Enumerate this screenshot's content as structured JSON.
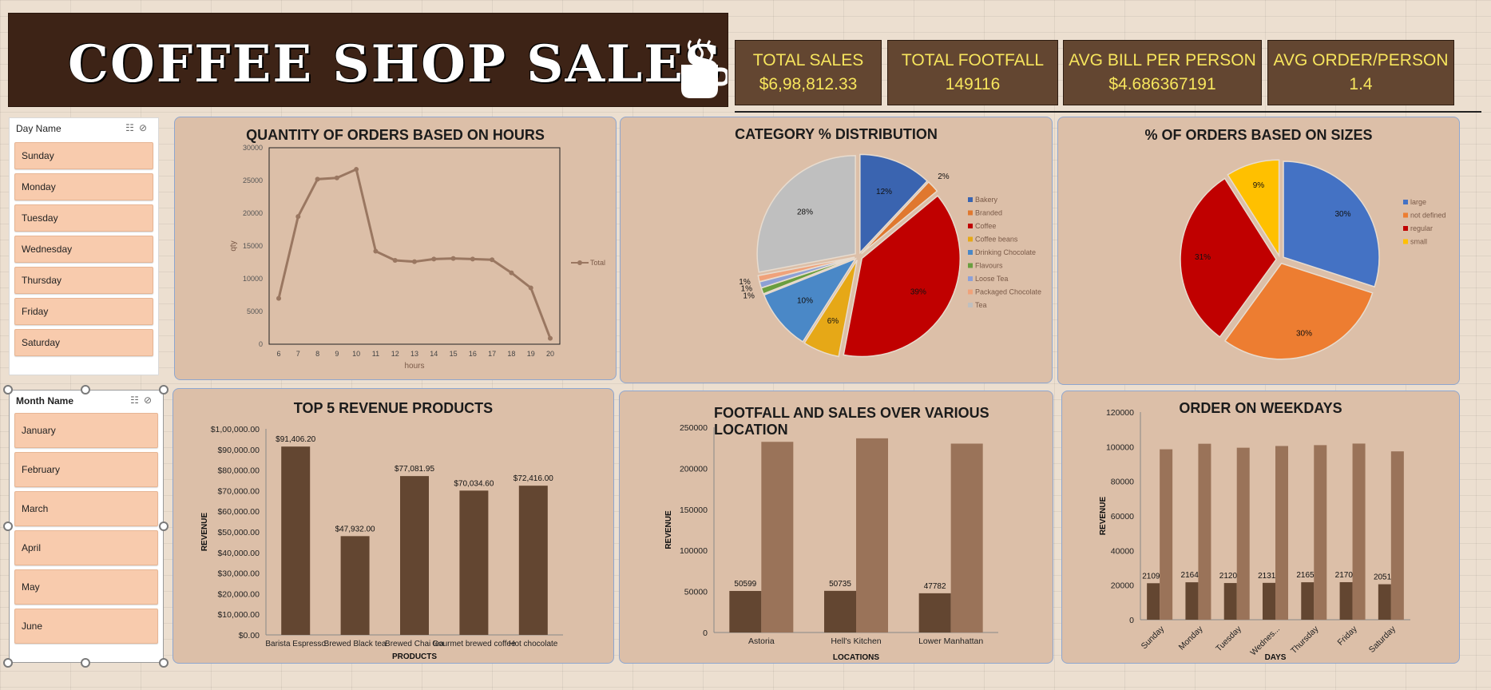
{
  "title": "COFFEE SHOP SALES",
  "kpis": [
    {
      "label": "TOTAL SALES",
      "value": "$6,98,812.33"
    },
    {
      "label": "TOTAL FOOTFALL",
      "value": "149116"
    },
    {
      "label": "AVG BILL PER PERSON",
      "value": "$4.686367191"
    },
    {
      "label": "AVG ORDER/PERSON",
      "value": "1.4"
    }
  ],
  "day_slicer": {
    "header": "Day Name",
    "items": [
      "Sunday",
      "Monday",
      "Tuesday",
      "Wednesday",
      "Thursday",
      "Friday",
      "Saturday"
    ]
  },
  "month_slicer": {
    "header": "Month Name",
    "items": [
      "January",
      "February",
      "March",
      "April",
      "May",
      "June"
    ]
  },
  "colors": {
    "banner": "#3d2316",
    "kpi": "#634631",
    "kpi_text": "#f7e55d",
    "panel": "#dcbfa8",
    "line": "#9a7761",
    "bar_dark": "#634631",
    "bar_light": "#9a7359"
  },
  "chart_data": [
    {
      "id": "hours",
      "type": "line",
      "title": "QUANTITY OF ORDERS BASED ON HOURS",
      "xlabel": "hours",
      "ylabel": "qty",
      "x": [
        6,
        7,
        8,
        9,
        10,
        11,
        12,
        13,
        14,
        15,
        16,
        17,
        18,
        19,
        20
      ],
      "series": [
        {
          "name": "Total",
          "values": [
            7000,
            19500,
            25200,
            25400,
            26700,
            14200,
            12800,
            12600,
            13000,
            13100,
            13000,
            12900,
            10900,
            8600,
            900
          ]
        }
      ],
      "yticks": [
        "0",
        "5000",
        "10000",
        "15000",
        "20000",
        "25000",
        "30000"
      ],
      "ylim": [
        0,
        30000
      ],
      "legend": "right"
    },
    {
      "id": "category",
      "type": "pie",
      "title": "CATEGORY % DISTRIBUTION",
      "categories": [
        "Bakery",
        "Branded",
        "Coffee",
        "Coffee beans",
        "Drinking Chocolate",
        "Flavours",
        "Loose Tea",
        "Packaged Chocolate",
        "Tea"
      ],
      "values": [
        12,
        2,
        39,
        6,
        10,
        1,
        1,
        1,
        28
      ],
      "labels": [
        "12%",
        "2%",
        "39%",
        "6%",
        "10%",
        "1%",
        "1%",
        "1%",
        "28%"
      ],
      "colors": [
        "#3a64b0",
        "#e0782f",
        "#c00000",
        "#e6a817",
        "#4a88c7",
        "#6a9e3f",
        "#8da0d6",
        "#f0a27a",
        "#bfbfbf"
      ],
      "legend": "right"
    },
    {
      "id": "sizes",
      "type": "pie",
      "title": "% OF ORDERS BASED ON SIZES",
      "categories": [
        "large",
        "not defined",
        "regular",
        "small"
      ],
      "values": [
        30,
        30,
        31,
        9
      ],
      "labels": [
        "30%",
        "30%",
        "31%",
        "9%"
      ],
      "colors": [
        "#4472c4",
        "#ed7d31",
        "#c00000",
        "#ffc000"
      ],
      "legend": "right"
    },
    {
      "id": "products",
      "type": "bar",
      "title": "TOP 5 REVENUE PRODUCTS",
      "xlabel": "PRODUCTS",
      "ylabel": "REVENUE",
      "categories": [
        "Barista Espresso",
        "Brewed Black tea",
        "Brewed Chai tea",
        "Gourmet brewed coffee",
        "Hot chocolate"
      ],
      "values": [
        91406.2,
        47932.0,
        77081.95,
        70034.6,
        72416.0
      ],
      "labels": [
        "$91,406.20",
        "$47,932.00",
        "$77,081.95",
        "$70,034.60",
        "$72,416.00"
      ],
      "yticks": [
        "$0.00",
        "$10,000.00",
        "$20,000.00",
        "$30,000.00",
        "$40,000.00",
        "$50,000.00",
        "$60,000.00",
        "$70,000.00",
        "$80,000.00",
        "$90,000.00",
        "$1,00,000.00"
      ],
      "ylim": [
        0,
        100000
      ]
    },
    {
      "id": "locations",
      "type": "bar",
      "title": "FOOTFALL AND SALES  OVER VARIOUS LOCATION",
      "xlabel": "LOCATIONS",
      "ylabel": "REVENUE",
      "categories": [
        "Astoria",
        "Hell's Kitchen",
        "Lower Manhattan"
      ],
      "series": [
        {
          "values": [
            50599,
            50735,
            47782
          ],
          "labels": [
            "50599",
            "50735",
            "47782"
          ]
        },
        {
          "values": [
            232244,
            236511,
            230057
          ]
        }
      ],
      "yticks": [
        "0",
        "50000",
        "100000",
        "150000",
        "200000",
        "250000"
      ],
      "ylim": [
        0,
        250000
      ]
    },
    {
      "id": "weekdays",
      "type": "bar",
      "title": "ORDER ON WEEKDAYS",
      "xlabel": "DAYS",
      "ylabel": "REVENUE",
      "categories": [
        "Sunday",
        "Monday",
        "Tuesday",
        "Wednes...",
        "Thursday",
        "Friday",
        "Saturday"
      ],
      "series": [
        {
          "values": [
            21096,
            21643,
            21202,
            21310,
            21654,
            21701,
            20510
          ],
          "labels": [
            "21096",
            "21643",
            "21202",
            "21310",
            "21654",
            "21701",
            "20510"
          ]
        },
        {
          "values": [
            98500,
            101700,
            99400,
            100400,
            100900,
            101800,
            97300
          ]
        }
      ],
      "yticks": [
        "0",
        "20000",
        "40000",
        "60000",
        "80000",
        "100000",
        "120000"
      ],
      "ylim": [
        0,
        120000
      ]
    }
  ]
}
